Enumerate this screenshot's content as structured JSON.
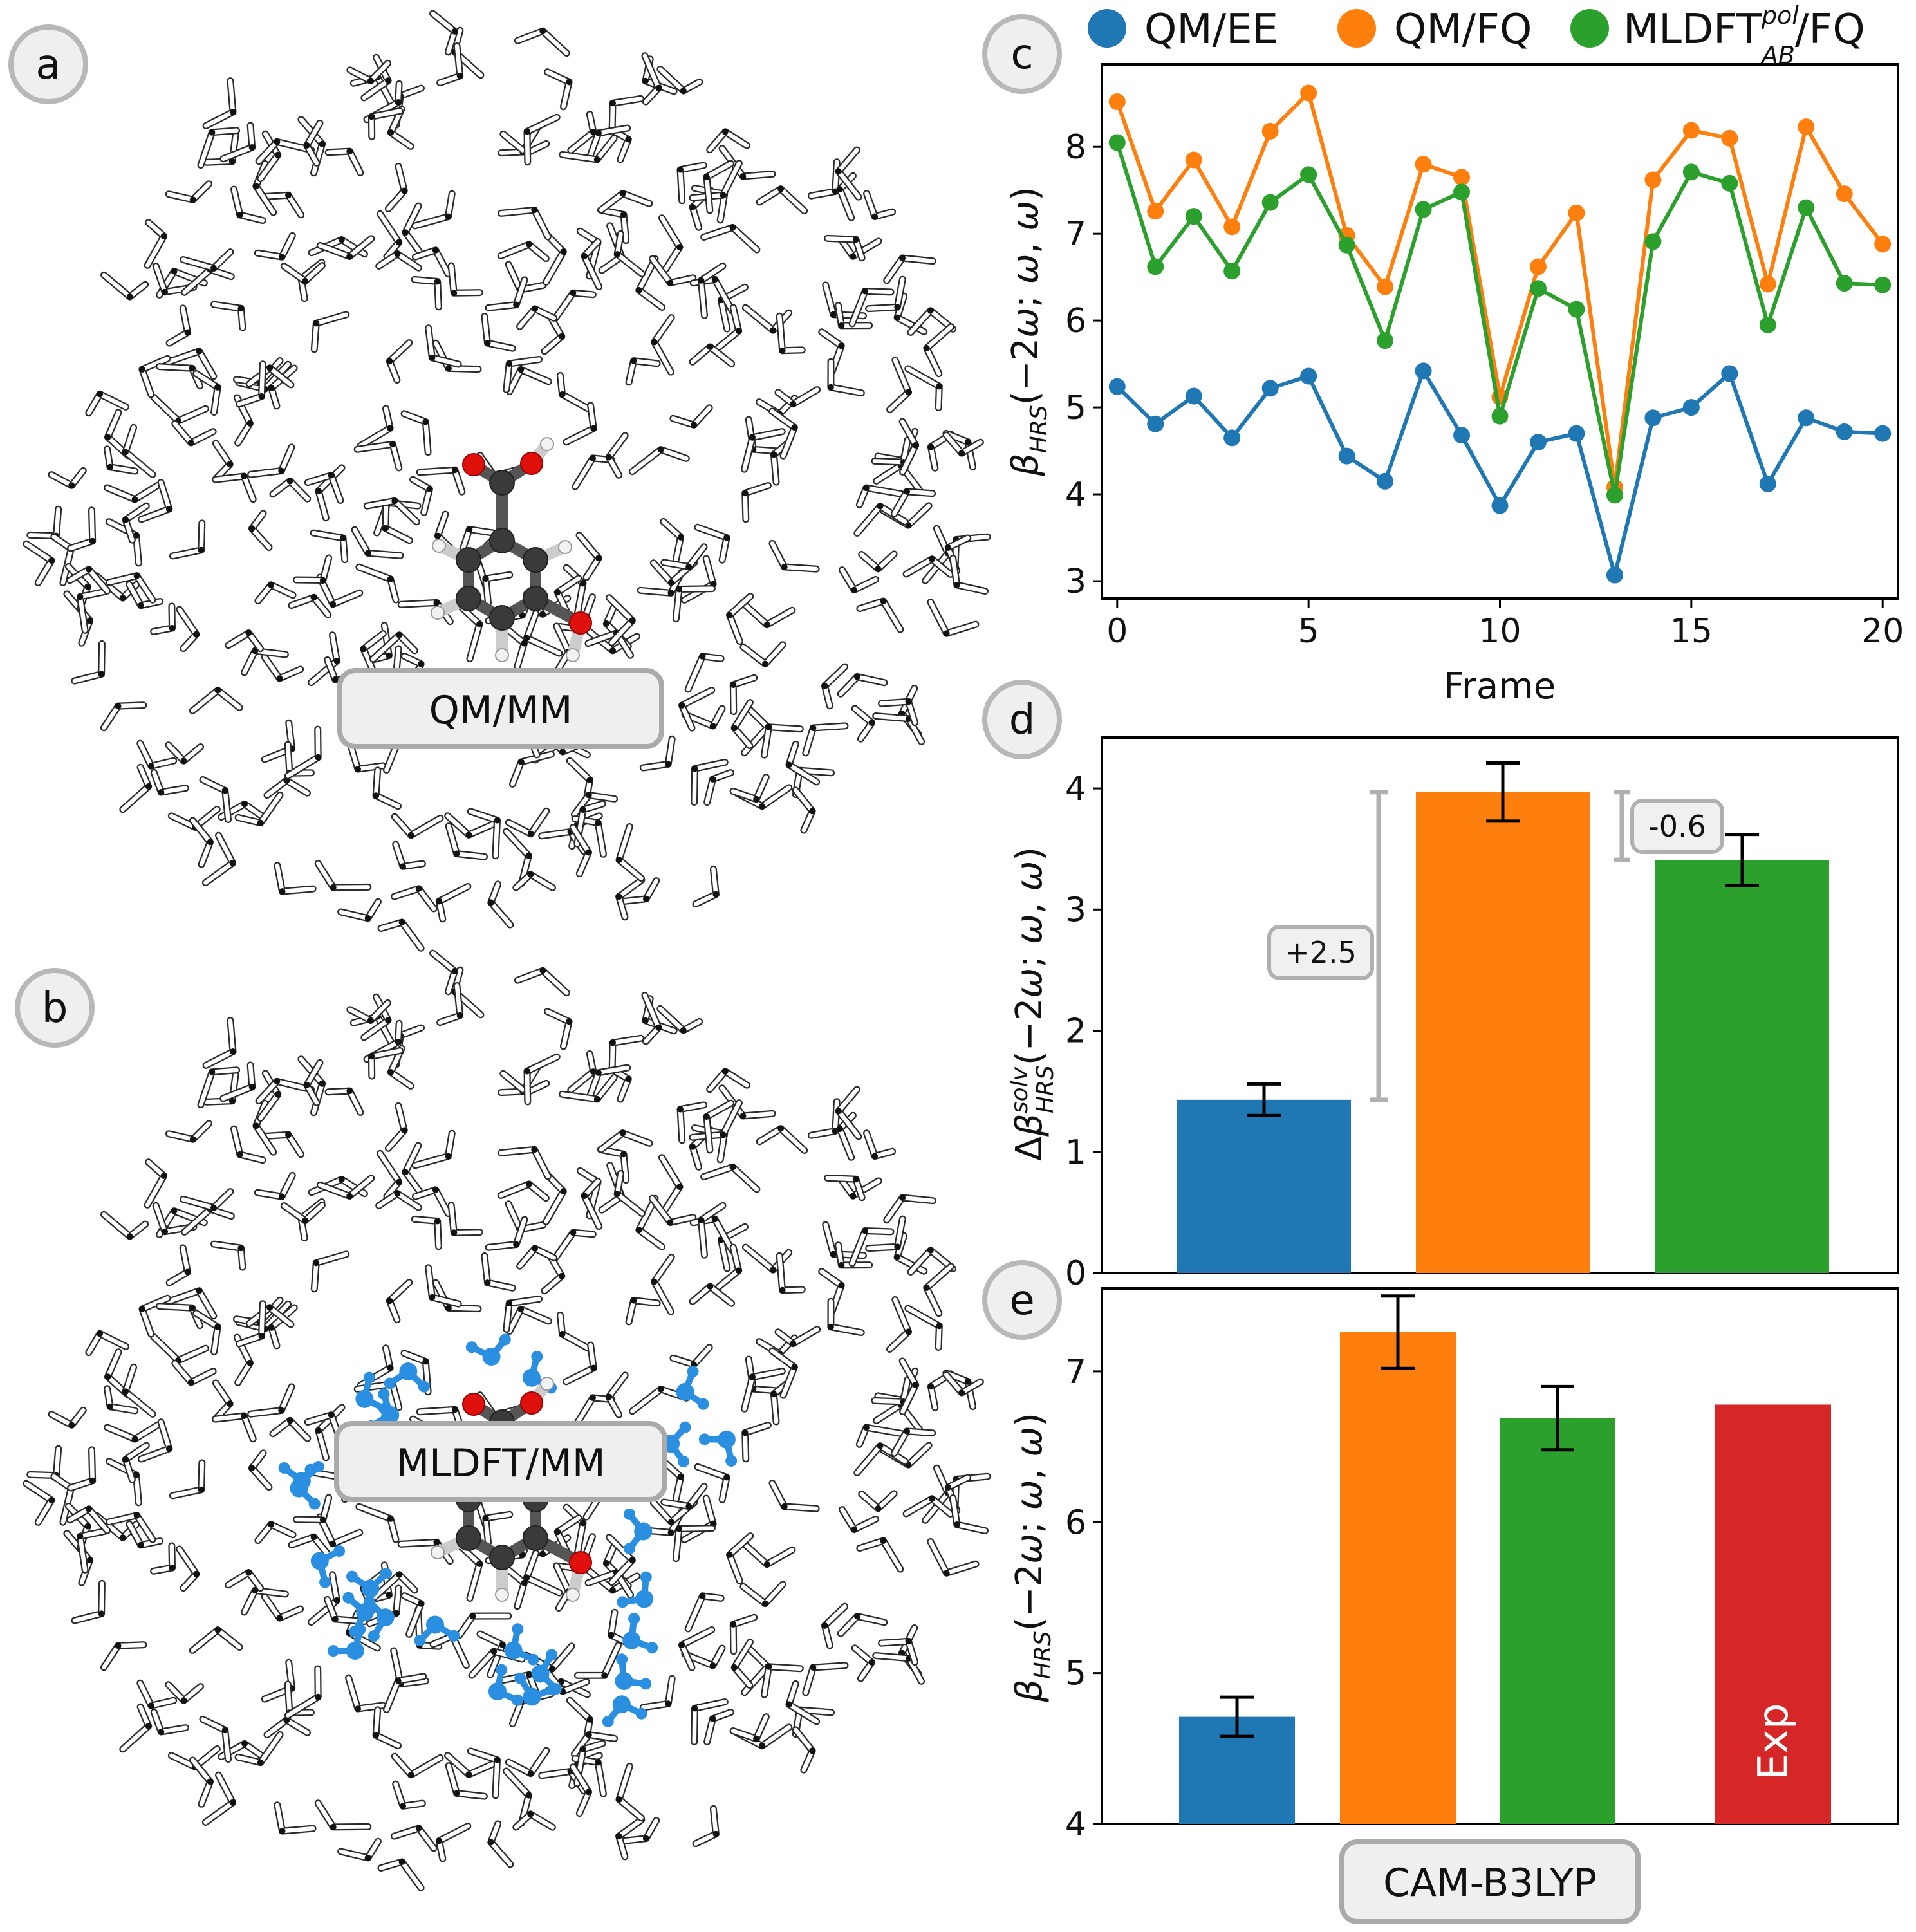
{
  "panels": {
    "a": {
      "letter": "a",
      "label": "QM/MM"
    },
    "b": {
      "letter": "b",
      "label": "MLDFT/MM"
    }
  },
  "legend": {
    "items": [
      {
        "name": "QM/EE",
        "color": "#1f77b4"
      },
      {
        "name": "QM/FQ",
        "color": "#ff7f0e"
      },
      {
        "name_main": "MLDFT",
        "name_sup": "pol",
        "name_sub": "AB",
        "name_tail": "/FQ",
        "color": "#2ca02c"
      }
    ]
  },
  "colors": {
    "qmee": "#1f77b4",
    "qmfq": "#ff7f0e",
    "mldft": "#2ca02c",
    "exp": "#d62728",
    "mm_blue": "#2a8fe0",
    "carbon": "#3a3a3a",
    "oxygen": "#e0100c"
  },
  "chart_data": [
    {
      "panel": "c",
      "type": "line",
      "xlabel": "Frame",
      "ylabel": "β_HRS(−2ω; ω, ω)",
      "xlim": [
        -0.4,
        20.4
      ],
      "ylim": [
        2.8,
        8.95
      ],
      "xticks": [
        0,
        5,
        10,
        15,
        20
      ],
      "yticks": [
        3,
        4,
        5,
        6,
        7,
        8
      ],
      "x": [
        0,
        1,
        2,
        3,
        4,
        5,
        6,
        7,
        8,
        9,
        10,
        11,
        12,
        13,
        14,
        15,
        16,
        17,
        18,
        19,
        20
      ],
      "series": [
        {
          "name": "QM/EE",
          "color": "#1f77b4",
          "values": [
            5.24,
            4.81,
            5.13,
            4.65,
            5.22,
            5.36,
            4.44,
            4.15,
            5.42,
            4.68,
            3.87,
            4.6,
            4.7,
            3.07,
            4.88,
            5.0,
            5.39,
            4.12,
            4.88,
            4.72,
            4.7
          ]
        },
        {
          "name": "QM/FQ",
          "color": "#ff7f0e",
          "values": [
            8.52,
            7.26,
            7.85,
            7.08,
            8.18,
            8.62,
            6.98,
            6.39,
            7.8,
            7.65,
            5.12,
            6.62,
            7.24,
            4.08,
            7.62,
            8.19,
            8.1,
            6.42,
            8.23,
            7.46,
            6.88
          ]
        },
        {
          "name": "MLDFT_AB^pol/FQ",
          "color": "#2ca02c",
          "values": [
            8.05,
            6.62,
            7.2,
            6.57,
            7.36,
            7.68,
            6.87,
            5.77,
            7.28,
            7.48,
            4.9,
            6.37,
            6.13,
            3.99,
            6.91,
            7.71,
            7.58,
            5.95,
            7.3,
            6.43,
            6.41
          ]
        }
      ]
    },
    {
      "panel": "d",
      "type": "bar",
      "ylabel": "Δβ_HRS^solv(−2ω; ω, ω)",
      "ylim": [
        0,
        4.42
      ],
      "yticks": [
        0,
        1,
        2,
        3,
        4
      ],
      "categories": [
        "QM/EE",
        "QM/FQ",
        "MLDFT_AB^pol/FQ"
      ],
      "values": [
        1.43,
        3.97,
        3.41
      ],
      "errors": [
        0.13,
        0.24,
        0.21
      ],
      "colors": [
        "#1f77b4",
        "#ff7f0e",
        "#2ca02c"
      ],
      "annotations": [
        {
          "text": "+2.5",
          "from": 1.43,
          "to": 3.97
        },
        {
          "text": "-0.6",
          "from": 3.97,
          "to": 3.41
        }
      ]
    },
    {
      "panel": "e",
      "type": "bar",
      "ylabel": "β_HRS(−2ω; ω, ω)",
      "ylim": [
        4,
        7.55
      ],
      "yticks": [
        4,
        5,
        6,
        7
      ],
      "categories": [
        "QM/EE",
        "QM/FQ",
        "MLDFT_AB^pol/FQ",
        "Exp"
      ],
      "values": [
        4.71,
        7.26,
        6.69,
        6.78
      ],
      "errors": [
        0.13,
        0.24,
        0.21,
        null
      ],
      "colors": [
        "#1f77b4",
        "#ff7f0e",
        "#2ca02c",
        "#d62728"
      ],
      "bar_text": "Exp",
      "group_label": "CAM-B3LYP"
    }
  ]
}
